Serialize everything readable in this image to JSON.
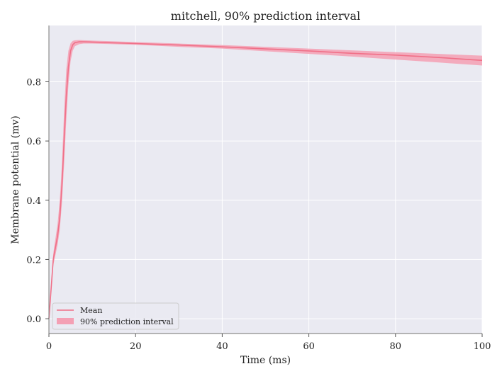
{
  "chart_data": {
    "type": "line",
    "title": "mitchell, 90% prediction interval",
    "xlabel": "Time (ms)",
    "ylabel": "Membrane potential (mv)",
    "xlim": [
      0,
      100
    ],
    "ylim": [
      -0.05,
      0.99
    ],
    "xticks": [
      0,
      20,
      40,
      60,
      80,
      100
    ],
    "yticks": [
      0.0,
      0.2,
      0.4,
      0.6,
      0.8
    ],
    "xtick_labels": [
      "0",
      "20",
      "40",
      "60",
      "80",
      "100"
    ],
    "ytick_labels": [
      "0.0",
      "0.2",
      "0.4",
      "0.6",
      "0.8"
    ],
    "grid": true,
    "legend_position": "lower-left",
    "colors": {
      "background": "#eaeaf2",
      "grid": "#ffffff",
      "mean_line": "#f07088",
      "band_fill": "#f4a0b4"
    },
    "series": [
      {
        "name": "Mean",
        "kind": "line",
        "x": [
          0,
          0.5,
          1,
          1.5,
          2,
          2.5,
          3,
          3.5,
          4,
          4.5,
          5,
          5.5,
          6,
          7,
          8,
          10,
          20,
          30,
          40,
          50,
          60,
          70,
          80,
          90,
          100
        ],
        "y": [
          0.0,
          0.1,
          0.2,
          0.24,
          0.28,
          0.34,
          0.45,
          0.6,
          0.75,
          0.85,
          0.905,
          0.925,
          0.932,
          0.935,
          0.935,
          0.934,
          0.929,
          0.924,
          0.918,
          0.911,
          0.904,
          0.896,
          0.89,
          0.882,
          0.872
        ]
      },
      {
        "name": "90% prediction interval",
        "kind": "band",
        "x": [
          0,
          0.5,
          1,
          1.5,
          2,
          2.5,
          3,
          3.5,
          4,
          4.5,
          5,
          5.5,
          6,
          7,
          8,
          10,
          20,
          30,
          40,
          50,
          60,
          70,
          80,
          90,
          100
        ],
        "lower": [
          0.0,
          0.09,
          0.18,
          0.215,
          0.25,
          0.3,
          0.39,
          0.52,
          0.67,
          0.79,
          0.87,
          0.905,
          0.92,
          0.927,
          0.929,
          0.929,
          0.925,
          0.918,
          0.912,
          0.903,
          0.894,
          0.885,
          0.875,
          0.865,
          0.855
        ],
        "upper": [
          0.0,
          0.11,
          0.22,
          0.27,
          0.32,
          0.4,
          0.52,
          0.7,
          0.84,
          0.905,
          0.93,
          0.938,
          0.94,
          0.941,
          0.94,
          0.939,
          0.934,
          0.929,
          0.924,
          0.918,
          0.912,
          0.906,
          0.9,
          0.894,
          0.888
        ]
      }
    ]
  }
}
